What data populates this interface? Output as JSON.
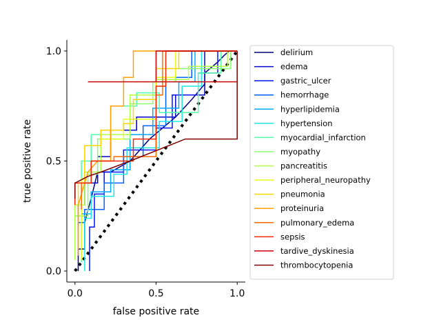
{
  "chart_data": {
    "type": "line",
    "title": "",
    "xlabel": "false positive rate",
    "ylabel": "true positive rate",
    "xlim": [
      -0.05,
      1.05
    ],
    "ylim": [
      -0.05,
      1.05
    ],
    "xticks": [
      0.0,
      0.5,
      1.0
    ],
    "yticks": [
      0.0,
      0.5,
      1.0
    ],
    "xtick_labels": [
      "0.0",
      "0.5",
      "1.0"
    ],
    "ytick_labels": [
      "0.0",
      "0.5",
      "1.0"
    ],
    "grid": false,
    "legend_position": "right, outside plot",
    "diagonal": {
      "style": "dotted",
      "color": "#000000",
      "x": [
        0,
        1
      ],
      "y": [
        0,
        1
      ]
    },
    "series": [
      {
        "name": "delirium",
        "color": "#000080",
        "x": [
          0.02,
          0.02,
          0.06,
          0.06,
          0.1,
          0.14,
          0.22,
          0.34,
          0.46,
          0.62,
          0.72,
          0.8,
          0.8,
          0.88,
          0.92,
          0.95,
          1.0
        ],
        "y": [
          0.0,
          0.1,
          0.1,
          0.22,
          0.33,
          0.45,
          0.45,
          0.5,
          0.6,
          0.7,
          0.78,
          0.85,
          0.9,
          0.95,
          0.98,
          1.0,
          1.0
        ]
      },
      {
        "name": "edema",
        "color": "#0000c8",
        "x": [
          0.02,
          0.02,
          0.06,
          0.06,
          0.14,
          0.14,
          0.22,
          0.22,
          0.38,
          0.38,
          0.62,
          0.62,
          0.8,
          0.8,
          1.0
        ],
        "y": [
          0.2,
          0.3,
          0.3,
          0.4,
          0.4,
          0.52,
          0.52,
          0.64,
          0.64,
          0.7,
          0.7,
          0.8,
          0.8,
          1.0,
          1.0
        ]
      },
      {
        "name": "gastric_ulcer",
        "color": "#0010ff",
        "x": [
          0.09,
          0.09,
          0.12,
          0.12,
          0.18,
          0.18,
          0.3,
          0.3,
          0.5,
          0.5,
          0.6,
          0.6,
          0.76,
          0.76,
          0.88,
          0.88,
          1.0
        ],
        "y": [
          0.0,
          0.2,
          0.2,
          0.35,
          0.35,
          0.45,
          0.45,
          0.55,
          0.55,
          0.65,
          0.65,
          0.8,
          0.8,
          0.9,
          0.9,
          1.0,
          1.0
        ]
      },
      {
        "name": "hemorrhage",
        "color": "#0060ff",
        "x": [
          0.02,
          0.02,
          0.06,
          0.06,
          0.18,
          0.18,
          0.3,
          0.3,
          0.42,
          0.42,
          0.56,
          0.56,
          0.72,
          0.72,
          1.0
        ],
        "y": [
          0.1,
          0.22,
          0.22,
          0.28,
          0.28,
          0.4,
          0.4,
          0.52,
          0.52,
          0.66,
          0.66,
          0.88,
          0.88,
          1.0,
          1.0
        ]
      },
      {
        "name": "hyperlipidemia",
        "color": "#00a8ff",
        "x": [
          0.04,
          0.04,
          0.1,
          0.1,
          0.22,
          0.22,
          0.34,
          0.34,
          0.48,
          0.48,
          0.64,
          0.64,
          0.74,
          0.74,
          1.0
        ],
        "y": [
          0.05,
          0.26,
          0.26,
          0.36,
          0.36,
          0.46,
          0.46,
          0.62,
          0.62,
          0.74,
          0.74,
          0.86,
          0.86,
          1.0,
          1.0
        ]
      },
      {
        "name": "hypertension",
        "color": "#1ae8e6",
        "x": [
          0.06,
          0.06,
          0.1,
          0.1,
          0.24,
          0.24,
          0.32,
          0.32,
          0.52,
          0.52,
          0.66,
          0.66,
          0.78,
          0.78,
          1.0
        ],
        "y": [
          0.0,
          0.24,
          0.24,
          0.34,
          0.34,
          0.44,
          0.44,
          0.56,
          0.56,
          0.68,
          0.68,
          0.84,
          0.84,
          1.0,
          1.0
        ]
      },
      {
        "name": "myocardial_infarction",
        "color": "#50ffa6",
        "x": [
          0.04,
          0.04,
          0.1,
          0.1,
          0.22,
          0.22,
          0.38,
          0.38,
          0.52,
          0.52,
          0.76,
          0.76,
          0.9,
          0.9,
          1.0
        ],
        "y": [
          0.04,
          0.5,
          0.5,
          0.62,
          0.62,
          0.75,
          0.75,
          0.81,
          0.81,
          0.72,
          0.72,
          0.9,
          0.9,
          1.0,
          1.0
        ]
      },
      {
        "name": "myopathy",
        "color": "#86ff6e",
        "x": [
          0.0,
          0.0,
          0.08,
          0.08,
          0.14,
          0.14,
          0.34,
          0.34,
          0.48,
          0.48,
          0.62,
          0.62,
          0.96,
          0.96,
          1.0
        ],
        "y": [
          0.07,
          0.25,
          0.25,
          0.44,
          0.44,
          0.6,
          0.6,
          0.76,
          0.76,
          0.86,
          0.86,
          0.92,
          0.92,
          1.0,
          1.0
        ]
      },
      {
        "name": "pancreatitis",
        "color": "#b0ff46",
        "x": [
          0.0,
          0.0,
          0.06,
          0.06,
          0.16,
          0.16,
          0.34,
          0.34,
          0.5,
          0.5,
          0.7,
          0.7,
          0.94,
          0.94,
          1.0
        ],
        "y": [
          0.05,
          0.3,
          0.3,
          0.45,
          0.45,
          0.62,
          0.62,
          0.8,
          0.8,
          0.87,
          0.87,
          0.93,
          0.93,
          1.0,
          1.0
        ]
      },
      {
        "name": "peripheral_neuropathy",
        "color": "#e8ff1a",
        "x": [
          0.04,
          0.04,
          0.06,
          0.06,
          0.16,
          0.16,
          0.3,
          0.3,
          0.5,
          0.5,
          0.62,
          0.62,
          1.0
        ],
        "y": [
          0.05,
          0.42,
          0.42,
          0.57,
          0.57,
          0.6,
          0.6,
          0.69,
          0.69,
          0.88,
          0.88,
          1.0,
          1.0
        ]
      },
      {
        "name": "pneumonia",
        "color": "#ffd400",
        "x": [
          0.02,
          0.02,
          0.06,
          0.06,
          0.16,
          0.16,
          0.3,
          0.3,
          0.36,
          0.36,
          0.5,
          0.5,
          0.64,
          0.64,
          1.0
        ],
        "y": [
          0.1,
          0.4,
          0.4,
          0.57,
          0.57,
          0.64,
          0.64,
          0.67,
          0.67,
          0.78,
          0.78,
          0.92,
          0.92,
          1.0,
          1.0
        ]
      },
      {
        "name": "proteinuria",
        "color": "#ffa000",
        "x": [
          0.02,
          0.02,
          0.08,
          0.14,
          0.22,
          0.22,
          0.3,
          0.3,
          0.36,
          0.36,
          1.0
        ],
        "y": [
          0.07,
          0.3,
          0.45,
          0.5,
          0.5,
          0.75,
          0.75,
          0.88,
          0.88,
          1.0,
          1.0
        ]
      },
      {
        "name": "pulmonary_edema",
        "color": "#ff6a00",
        "x": [
          0.04,
          0.04,
          0.1,
          0.1,
          0.24,
          0.24,
          0.5,
          0.5,
          0.54,
          0.54,
          1.0
        ],
        "y": [
          0.28,
          0.4,
          0.4,
          0.5,
          0.5,
          0.52,
          0.52,
          0.8,
          0.8,
          1.0,
          1.0
        ]
      },
      {
        "name": "sepsis",
        "color": "#f02800",
        "x": [
          0.0,
          0.0,
          0.1,
          0.1,
          0.36,
          0.36,
          0.5,
          0.5,
          0.56,
          0.56,
          1.0
        ],
        "y": [
          0.3,
          0.4,
          0.4,
          0.5,
          0.5,
          0.6,
          0.6,
          0.84,
          0.84,
          1.0,
          1.0
        ]
      },
      {
        "name": "tardive_dyskinesia",
        "color": "#c80000",
        "x": [
          0.08,
          0.08,
          1.0,
          1.0,
          0.5,
          0.5,
          1.0
        ],
        "y": [
          0.86,
          0.86,
          0.86,
          0.86,
          0.86,
          1.0,
          1.0
        ]
      },
      {
        "name": "thrombocytopenia",
        "color": "#800000",
        "x": [
          0.0,
          0.0,
          0.08,
          0.08,
          0.16,
          0.34,
          0.68,
          1.0,
          1.0
        ],
        "y": [
          0.33,
          0.4,
          0.43,
          0.43,
          0.45,
          0.5,
          0.6,
          0.6,
          1.0
        ]
      }
    ]
  }
}
